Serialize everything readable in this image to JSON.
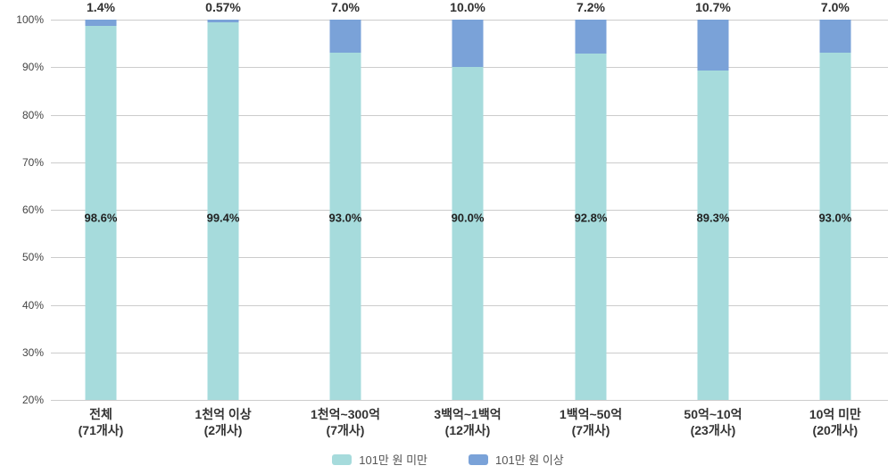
{
  "chart_data": {
    "type": "bar",
    "stacked": true,
    "percent_stacked": true,
    "title": "",
    "xlabel": "",
    "ylabel": "",
    "ylim": [
      20,
      100
    ],
    "grid": true,
    "legend_position": "bottom",
    "y_ticks": [
      "100%",
      "90%",
      "80%",
      "70%",
      "60%",
      "50%",
      "40%",
      "30%",
      "20%"
    ],
    "categories": [
      "전체 (71개사)",
      "1천억 이상 (2개사)",
      "1천억~300억 (7개사)",
      "3백억~1백억 (12개사)",
      "1백억~50억 (7개사)",
      "50억~10억 (23개사)",
      "10억 미만 (20개사)"
    ],
    "series": [
      {
        "name": "101만 원 미만",
        "color": "#a6dbdc",
        "values": [
          98.6,
          99.4,
          93.0,
          90.0,
          92.8,
          89.3,
          93.0
        ]
      },
      {
        "name": "101만 원 이상",
        "color": "#7aa2d8",
        "values": [
          1.4,
          0.57,
          7.0,
          10.0,
          7.2,
          10.7,
          7.0
        ]
      }
    ],
    "bars": [
      {
        "category_line1": "전체",
        "category_line2": "(71개사)",
        "top_label": "1.4%",
        "inside_label": "98.6%",
        "blue_value": 1.4,
        "teal_value": 98.6,
        "center_pct": 5.97
      },
      {
        "category_line1": "1천억 이상",
        "category_line2": "(2개사)",
        "top_label": "0.57%",
        "inside_label": "99.4%",
        "blue_value": 0.57,
        "teal_value": 99.4,
        "center_pct": 20.58
      },
      {
        "category_line1": "1천억~300억",
        "category_line2": "(7개사)",
        "top_label": "7.0%",
        "inside_label": "93.0%",
        "blue_value": 7.0,
        "teal_value": 93.0,
        "center_pct": 35.18
      },
      {
        "category_line1": "3백억~1백억",
        "category_line2": "(12개사)",
        "top_label": "10.0%",
        "inside_label": "90.0%",
        "blue_value": 10.0,
        "teal_value": 90.0,
        "center_pct": 49.79
      },
      {
        "category_line1": "1백억~50억",
        "category_line2": "(7개사)",
        "top_label": "7.2%",
        "inside_label": "92.8%",
        "blue_value": 7.2,
        "teal_value": 92.8,
        "center_pct": 64.5
      },
      {
        "category_line1": "50억~10억",
        "category_line2": "(23개사)",
        "top_label": "10.7%",
        "inside_label": "89.3%",
        "blue_value": 10.7,
        "teal_value": 89.3,
        "center_pct": 79.1
      },
      {
        "category_line1": "10억 미만",
        "category_line2": "(20개사)",
        "top_label": "7.0%",
        "inside_label": "93.0%",
        "blue_value": 7.0,
        "teal_value": 93.0,
        "center_pct": 93.7
      }
    ],
    "colors": {
      "teal": "#a6dbdc",
      "blue": "#7aa2d8",
      "gridline": "#cccccc",
      "label_dark": "#2f2f2f",
      "axis_text": "#444444",
      "legend_text": "#555555"
    }
  }
}
